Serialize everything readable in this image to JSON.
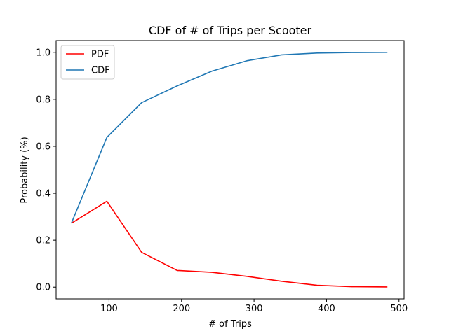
{
  "chart_data": {
    "type": "line",
    "title": "CDF of # of Trips per Scooter",
    "xlabel": "# of Trips",
    "ylabel": "Probability (%)",
    "xlim": [
      27,
      507
    ],
    "ylim": [
      -0.05,
      1.05
    ],
    "x_ticks": [
      100,
      200,
      300,
      400,
      500
    ],
    "y_ticks": [
      0.0,
      0.2,
      0.4,
      0.6,
      0.8,
      1.0
    ],
    "x_tick_labels": [
      "100",
      "200",
      "300",
      "400",
      "500"
    ],
    "y_tick_labels": [
      "0.0",
      "0.2",
      "0.4",
      "0.6",
      "0.8",
      "1.0"
    ],
    "grid": false,
    "legend_position": "top-left",
    "x": [
      48,
      97,
      145,
      194,
      242,
      290,
      338,
      387,
      435,
      484
    ],
    "series": [
      {
        "name": "PDF",
        "color": "#ff0000",
        "values": [
          0.272,
          0.366,
          0.148,
          0.071,
          0.063,
          0.046,
          0.025,
          0.008,
          0.002,
          0.001
        ]
      },
      {
        "name": "CDF",
        "color": "#1f77b4",
        "values": [
          0.272,
          0.638,
          0.786,
          0.857,
          0.92,
          0.964,
          0.989,
          0.997,
          0.999,
          1.0
        ]
      }
    ]
  }
}
